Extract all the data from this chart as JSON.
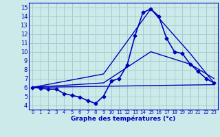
{
  "xlabel": "Graphe des températures (°c)",
  "background_color": "#cceaea",
  "grid_color": "#aacccc",
  "line_color": "#0000bb",
  "xlim": [
    -0.5,
    23.5
  ],
  "ylim": [
    3.5,
    15.5
  ],
  "yticks": [
    4,
    5,
    6,
    7,
    8,
    9,
    10,
    11,
    12,
    13,
    14,
    15
  ],
  "xticks": [
    0,
    1,
    2,
    3,
    4,
    5,
    6,
    7,
    8,
    9,
    10,
    11,
    12,
    13,
    14,
    15,
    16,
    17,
    18,
    19,
    20,
    21,
    22,
    23
  ],
  "series": [
    {
      "x": [
        0,
        1,
        2,
        3,
        4,
        5,
        6,
        7,
        8,
        9,
        10,
        11,
        12,
        13,
        14,
        15,
        16,
        17,
        18,
        19,
        20,
        21,
        22,
        23
      ],
      "y": [
        6.0,
        5.9,
        5.8,
        5.8,
        5.3,
        5.1,
        4.9,
        4.5,
        4.2,
        5.0,
        6.7,
        7.0,
        8.5,
        11.8,
        14.4,
        14.8,
        14.0,
        11.5,
        10.0,
        9.8,
        8.6,
        7.8,
        7.0,
        6.5
      ],
      "marker": "D",
      "markersize": 2.5,
      "linewidth": 1.2,
      "use_marker": true
    },
    {
      "x": [
        0,
        23
      ],
      "y": [
        6.0,
        6.3
      ],
      "marker": null,
      "linewidth": 1.0,
      "use_marker": false
    },
    {
      "x": [
        0,
        9,
        15,
        20,
        23
      ],
      "y": [
        6.0,
        6.5,
        10.0,
        8.6,
        7.0
      ],
      "marker": null,
      "linewidth": 1.0,
      "use_marker": false
    },
    {
      "x": [
        0,
        9,
        15,
        20,
        23
      ],
      "y": [
        6.0,
        7.5,
        14.8,
        9.8,
        6.5
      ],
      "marker": null,
      "linewidth": 1.0,
      "use_marker": false
    }
  ]
}
